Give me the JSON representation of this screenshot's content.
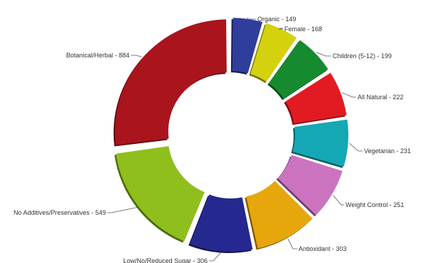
{
  "chart_data": {
    "type": "pie",
    "style": "exploded-donut",
    "title": "",
    "legend": "none",
    "slices": [
      {
        "label": "Organic",
        "value": 149,
        "text": "Organic - 149",
        "color": "#2f3d9c"
      },
      {
        "label": "Female",
        "value": 168,
        "text": "Female - 168",
        "color": "#d4d20f"
      },
      {
        "label": "Children (5-12)",
        "value": 199,
        "text": "Children (5-12) - 199",
        "color": "#168a2e"
      },
      {
        "label": "All Natural",
        "value": 222,
        "text": "All Natural - 222",
        "color": "#e21b23"
      },
      {
        "label": "Vegetarian",
        "value": 231,
        "text": "Vegetarian - 231",
        "color": "#14a8b4"
      },
      {
        "label": "Weight Control",
        "value": 251,
        "text": "Weight Control - 251",
        "color": "#cc73bf"
      },
      {
        "label": "Antioxidant",
        "value": 303,
        "text": "Antioxidant - 303",
        "color": "#e6a70c"
      },
      {
        "label": "Low/No/Reduced Sugar",
        "value": 306,
        "text": "Low/No/Reduced Sugar - 306",
        "color": "#25288e"
      },
      {
        "label": "No Additives/Preservatives",
        "value": 549,
        "text": "No Additives/Preservatives - 549",
        "color": "#8ebf1d"
      },
      {
        "label": "Botanical/Herbal",
        "value": 884,
        "text": "Botanical/Herbal - 884",
        "color": "#a9141d"
      }
    ]
  }
}
